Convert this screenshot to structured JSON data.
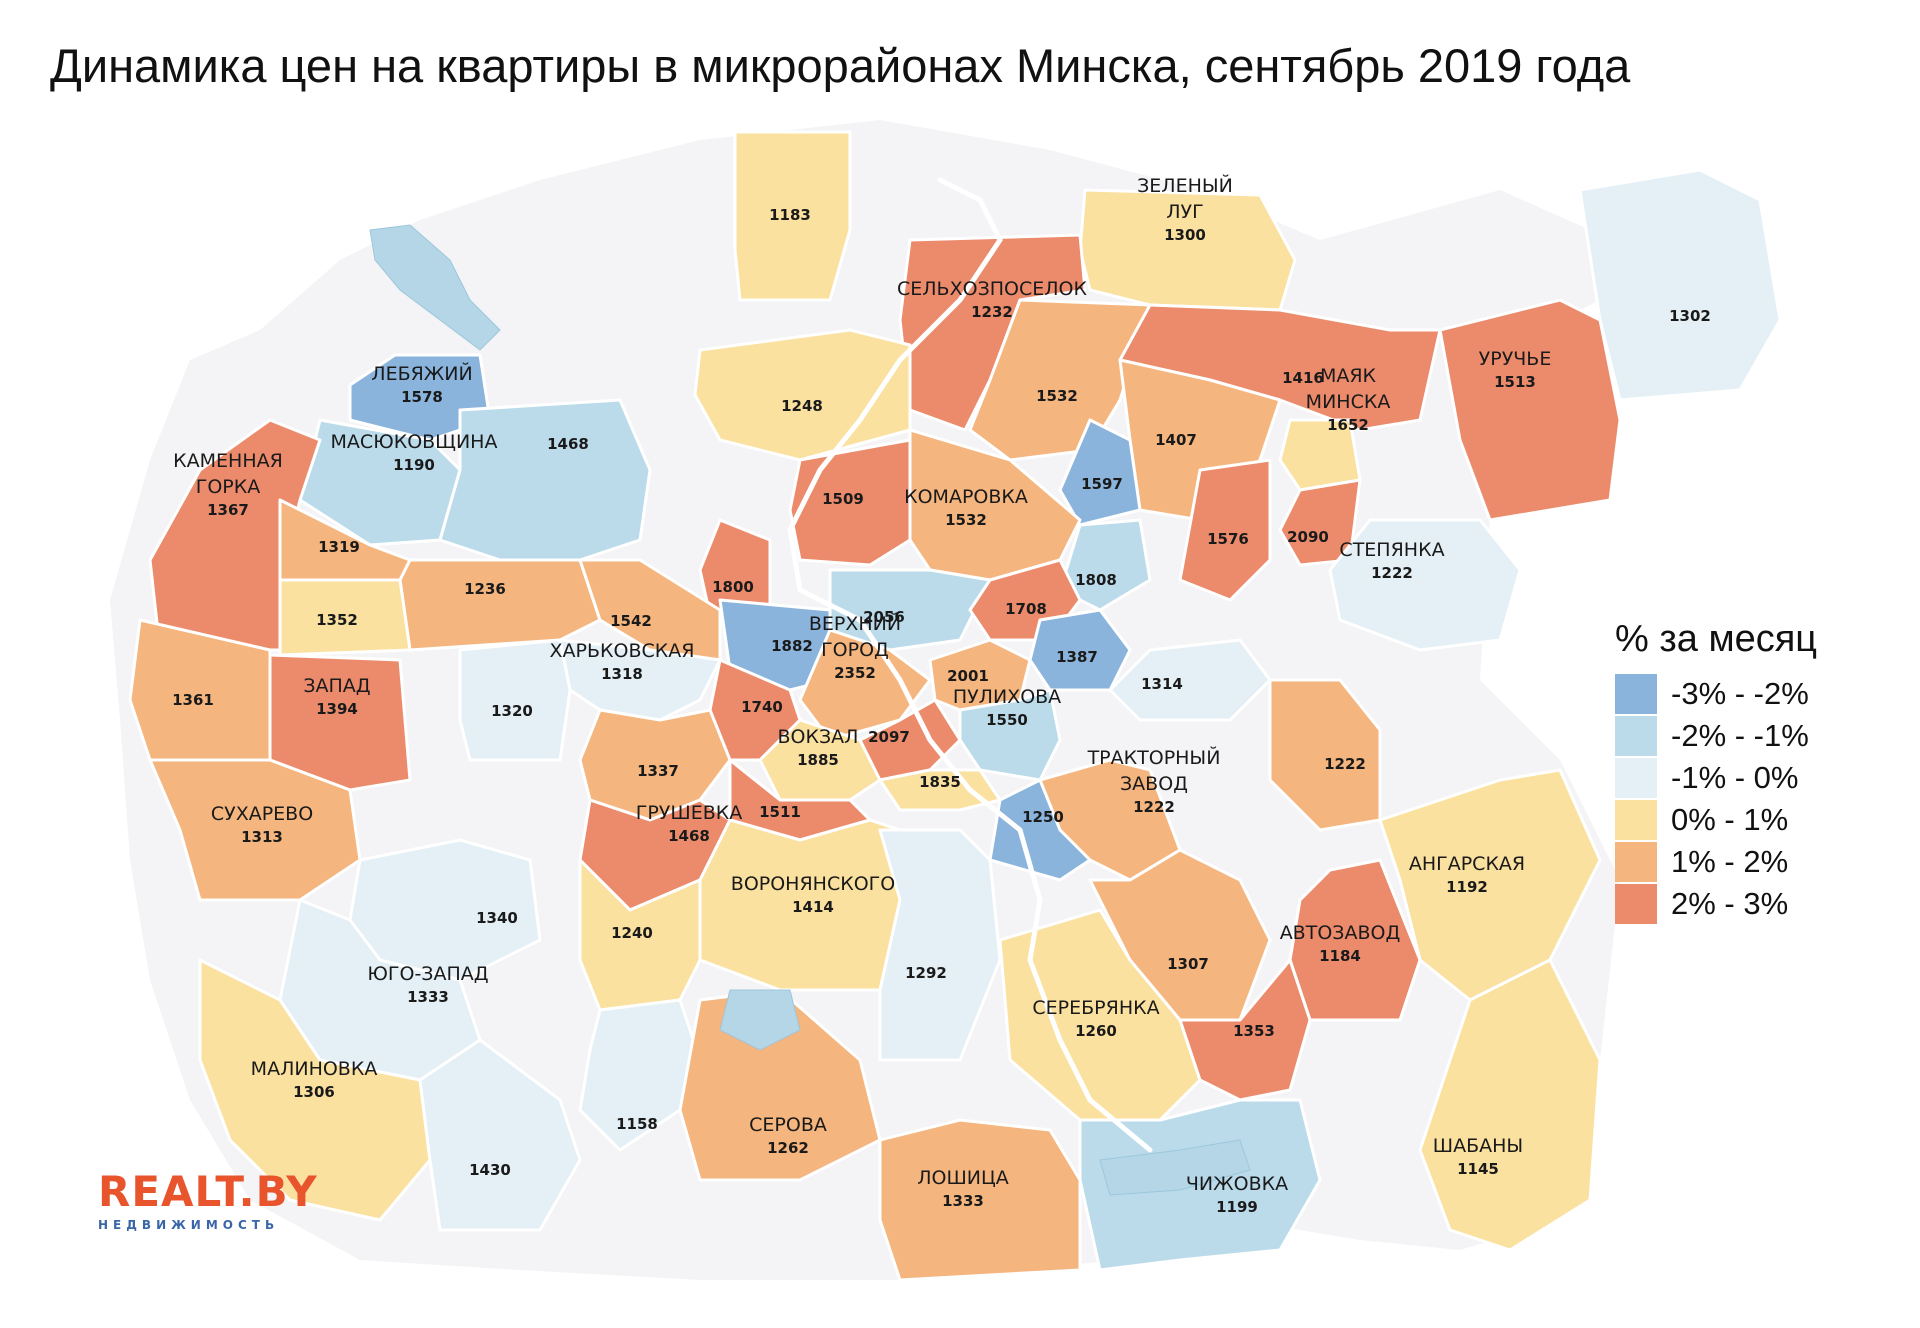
{
  "title": "Динамика цен на квартиры в микрорайонах Минска, сентябрь 2019 года",
  "colors": {
    "c1": "#8ab4dc",
    "c2": "#bbdbeb",
    "c3": "#e4f0f5",
    "c4": "#fbe1a0",
    "c5": "#f5b57e",
    "c6": "#ec8b6c",
    "city": "#f4f4f6",
    "water": "#b4d6e6"
  },
  "legend": {
    "title": "% за месяц",
    "items": [
      {
        "label": "-3% - -2%",
        "color": "#8ab4dc"
      },
      {
        "label": "-2% - -1%",
        "color": "#bbdbeb"
      },
      {
        "label": "-1% - 0%",
        "color": "#e4f0f5"
      },
      {
        "label": "0% - 1%",
        "color": "#fbe1a0"
      },
      {
        "label": "1% - 2%",
        "color": "#f5b57e"
      },
      {
        "label": "2% - 3%",
        "color": "#ec8b6c"
      }
    ]
  },
  "districts": [
    {
      "id": "d1183",
      "name": "",
      "value": "1183",
      "class": "0% - 1%"
    },
    {
      "id": "zeleny",
      "name": "ЗЕЛЕНЫЙ ЛУГ",
      "value": "1300",
      "class": "0% - 1%"
    },
    {
      "id": "selhoz",
      "name": "СЕЛЬХОЗПОСЕЛОК",
      "value": "1232",
      "class": "2% - 3%"
    },
    {
      "id": "d1302",
      "name": "",
      "value": "1302",
      "class": "-1% - 0%"
    },
    {
      "id": "lebyazhy",
      "name": "ЛЕБЯЖИЙ",
      "value": "1578",
      "class": "-3% - -2%"
    },
    {
      "id": "d1248",
      "name": "",
      "value": "1248",
      "class": "0% - 1%"
    },
    {
      "id": "d1532a",
      "name": "",
      "value": "1532",
      "class": "1% - 2%"
    },
    {
      "id": "d1416",
      "name": "",
      "value": "1416",
      "class": "2% - 3%"
    },
    {
      "id": "uruchye",
      "name": "УРУЧЬЕ",
      "value": "1513",
      "class": "2% - 3%"
    },
    {
      "id": "masyuk",
      "name": "МАСЮКОВЩИНА",
      "value": "1190",
      "class": "-2% - -1%"
    },
    {
      "id": "d1468",
      "name": "",
      "value": "1468",
      "class": "-2% - -1%"
    },
    {
      "id": "d1407",
      "name": "",
      "value": "1407",
      "class": "1% - 2%"
    },
    {
      "id": "mayak",
      "name": "МАЯК МИНСКА",
      "value": "1652",
      "class": "0% - 1%"
    },
    {
      "id": "kamgorka",
      "name": "КАМЕННАЯ ГОРКА",
      "value": "1367",
      "class": "2% - 3%"
    },
    {
      "id": "d1509",
      "name": "",
      "value": "1509",
      "class": "2% - 3%"
    },
    {
      "id": "d1597",
      "name": "",
      "value": "1597",
      "class": "-3% - -2%"
    },
    {
      "id": "komarovka",
      "name": "КОМАРОВКА",
      "value": "1532",
      "class": "1% - 2%"
    },
    {
      "id": "d1576",
      "name": "",
      "value": "1576",
      "class": "2% - 3%"
    },
    {
      "id": "d2090",
      "name": "",
      "value": "2090",
      "class": "2% - 3%"
    },
    {
      "id": "d1319",
      "name": "",
      "value": "1319",
      "class": "1% - 2%"
    },
    {
      "id": "stepyanka",
      "name": "СТЕПЯНКА",
      "value": "1222",
      "class": "-1% - 0%"
    },
    {
      "id": "d1236",
      "name": "",
      "value": "1236",
      "class": "1% - 2%"
    },
    {
      "id": "d1800",
      "name": "",
      "value": "1800",
      "class": "2% - 3%"
    },
    {
      "id": "d1808",
      "name": "",
      "value": "1808",
      "class": "-2% - -1%"
    },
    {
      "id": "d1352",
      "name": "",
      "value": "1352",
      "class": "0% - 1%"
    },
    {
      "id": "d1542",
      "name": "",
      "value": "1542",
      "class": "1% - 2%"
    },
    {
      "id": "d2056",
      "name": "",
      "value": "2056",
      "class": "-2% - -1%"
    },
    {
      "id": "d1708",
      "name": "",
      "value": "1708",
      "class": "2% - 3%"
    },
    {
      "id": "d1882",
      "name": "",
      "value": "1882",
      "class": "-3% - -2%"
    },
    {
      "id": "verkhny",
      "name": "ВЕРХНИЙ ГОРОД",
      "value": "2352",
      "class": "1% - 2%"
    },
    {
      "id": "kharkov",
      "name": "ХАРЬКОВСКАЯ",
      "value": "1318",
      "class": "-1% - 0%"
    },
    {
      "id": "d1387",
      "name": "",
      "value": "1387",
      "class": "-3% - -2%"
    },
    {
      "id": "d1361",
      "name": "",
      "value": "1361",
      "class": "1% - 2%"
    },
    {
      "id": "zapad",
      "name": "ЗАПАД",
      "value": "1394",
      "class": "2% - 3%"
    },
    {
      "id": "d2001",
      "name": "",
      "value": "2001",
      "class": "1% - 2%"
    },
    {
      "id": "d1314",
      "name": "",
      "value": "1314",
      "class": "-1% - 0%"
    },
    {
      "id": "d1740",
      "name": "",
      "value": "1740",
      "class": "2% - 3%"
    },
    {
      "id": "pulikhova",
      "name": "ПУЛИХОВА",
      "value": "1550",
      "class": "-2% - -1%"
    },
    {
      "id": "d1320",
      "name": "",
      "value": "1320",
      "class": "-1% - 0%"
    },
    {
      "id": "vokzal",
      "name": "ВОКЗАЛ",
      "value": "1885",
      "class": "0% - 1%"
    },
    {
      "id": "d2097",
      "name": "",
      "value": "2097",
      "class": "2% - 3%"
    },
    {
      "id": "d1337",
      "name": "",
      "value": "1337",
      "class": "1% - 2%"
    },
    {
      "id": "d1835",
      "name": "",
      "value": "1835",
      "class": "0% - 1%"
    },
    {
      "id": "d1222b",
      "name": "",
      "value": "1222",
      "class": "1% - 2%"
    },
    {
      "id": "traktor",
      "name": "ТРАКТОРНЫЙ ЗАВОД",
      "value": "1222",
      "class": "1% - 2%"
    },
    {
      "id": "sukharevo",
      "name": "СУХАРЕВО",
      "value": "1313",
      "class": "1% - 2%"
    },
    {
      "id": "grushevka",
      "name": "ГРУШЕВКА",
      "value": "1468",
      "class": "2% - 3%"
    },
    {
      "id": "d1511",
      "name": "",
      "value": "1511",
      "class": "2% - 3%"
    },
    {
      "id": "d1250",
      "name": "",
      "value": "1250",
      "class": "-3% - -2%"
    },
    {
      "id": "angarskaya",
      "name": "АНГАРСКАЯ",
      "value": "1192",
      "class": "0% - 1%"
    },
    {
      "id": "voronyan",
      "name": "ВОРОНЯНСКОГО",
      "value": "1414",
      "class": "0% - 1%"
    },
    {
      "id": "d1340",
      "name": "",
      "value": "1340",
      "class": "-1% - 0%"
    },
    {
      "id": "d1240",
      "name": "",
      "value": "1240",
      "class": "0% - 1%"
    },
    {
      "id": "avtozavod",
      "name": "АВТОЗАВОД",
      "value": "1184",
      "class": "2% - 3%"
    },
    {
      "id": "d1307",
      "name": "",
      "value": "1307",
      "class": "1% - 2%"
    },
    {
      "id": "d1292",
      "name": "",
      "value": "1292",
      "class": "-1% - 0%"
    },
    {
      "id": "yugozapad",
      "name": "ЮГО-ЗАПАД",
      "value": "1333",
      "class": "-1% - 0%"
    },
    {
      "id": "serebryanka",
      "name": "СЕРЕБРЯНКА",
      "value": "1260",
      "class": "0% - 1%"
    },
    {
      "id": "d1353",
      "name": "",
      "value": "1353",
      "class": "2% - 3%"
    },
    {
      "id": "malinovka",
      "name": "МАЛИНОВКА",
      "value": "1306",
      "class": "0% - 1%"
    },
    {
      "id": "d1158",
      "name": "",
      "value": "1158",
      "class": "-1% - 0%"
    },
    {
      "id": "serova",
      "name": "СЕРОВА",
      "value": "1262",
      "class": "1% - 2%"
    },
    {
      "id": "shabany",
      "name": "ШАБАНЫ",
      "value": "1145",
      "class": "0% - 1%"
    },
    {
      "id": "d1430",
      "name": "",
      "value": "1430",
      "class": "-1% - 0%"
    },
    {
      "id": "loshitsa",
      "name": "ЛОШИЦА",
      "value": "1333",
      "class": "1% - 2%"
    },
    {
      "id": "chizhovka",
      "name": "ЧИЖОВКА",
      "value": "1199",
      "class": "-2% - -1%"
    }
  ],
  "logo": {
    "main": "REALT.BY",
    "sub": "НЕДВИЖИМОСТЬ"
  }
}
